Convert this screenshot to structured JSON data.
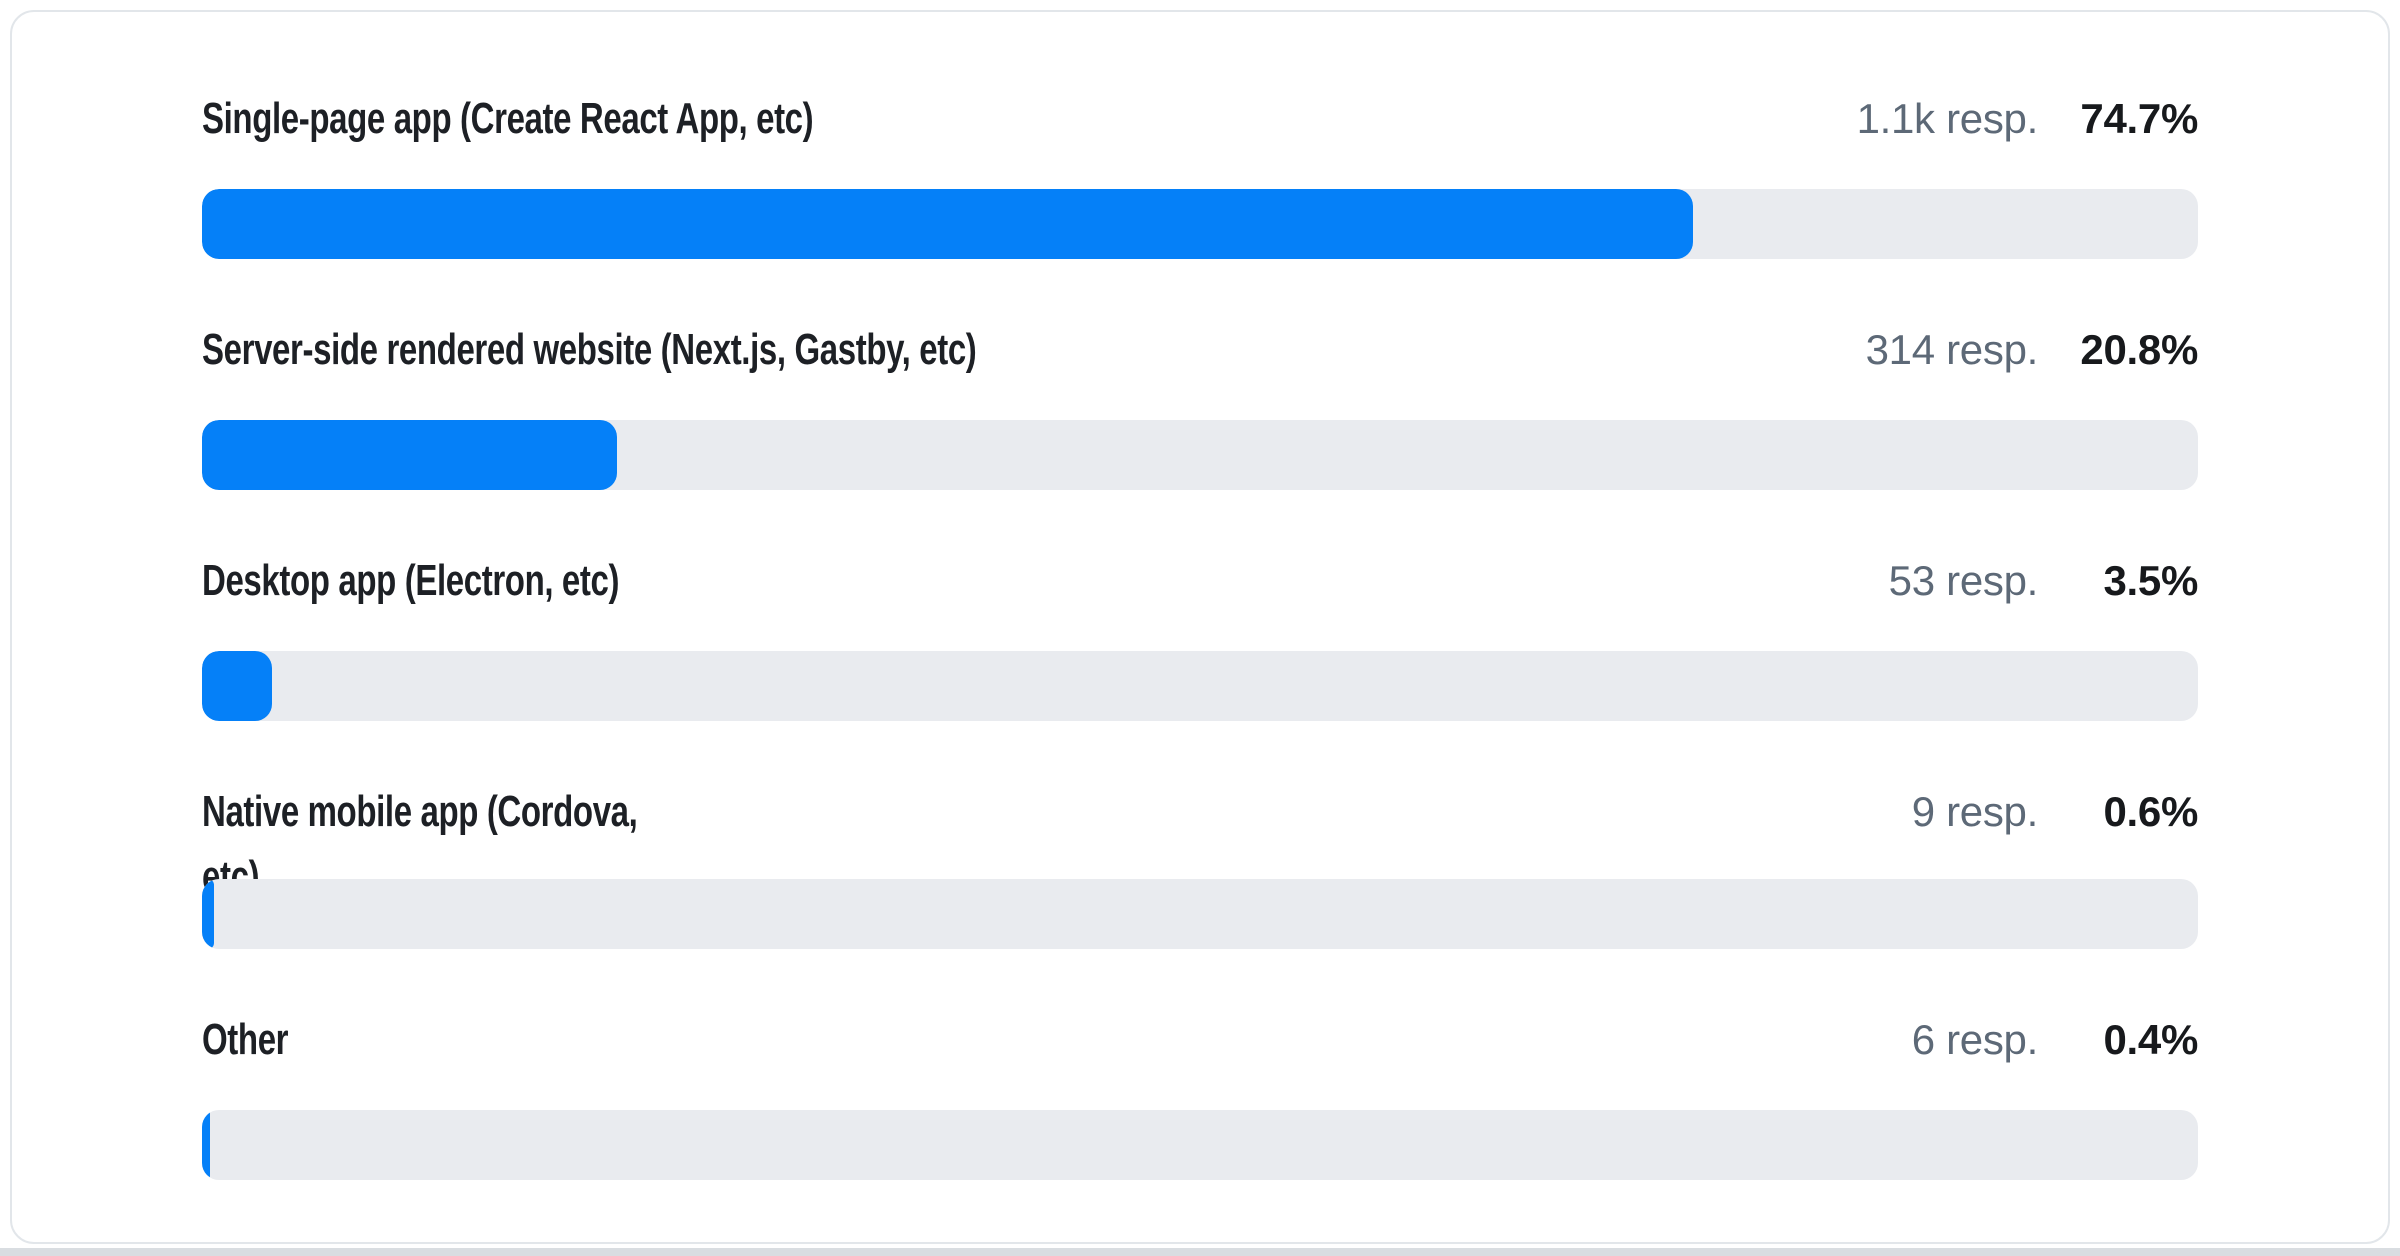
{
  "colors": {
    "bar_fill": "#0580f8",
    "bar_track": "#e9ebef",
    "label_text": "#1d2025",
    "resp_text": "#5d6977",
    "percent_text": "#17191c",
    "card_border": "#e2e6ea",
    "bottom_strip": "#d9dde1"
  },
  "chart_data": {
    "type": "bar",
    "orientation": "horizontal",
    "title": "",
    "xlabel": "",
    "ylabel": "",
    "xlim": [
      0,
      100
    ],
    "grid": false,
    "legend": false,
    "value_unit": "percent of responses",
    "categories": [
      "Single-page app (Create React App, etc)",
      "Server-side rendered website (Next.js, Gastby, etc)",
      "Desktop app (Electron, etc)",
      "Native mobile app (Cordova, etc)",
      "Other"
    ],
    "values": [
      74.7,
      20.8,
      3.5,
      0.6,
      0.4
    ],
    "response_counts": [
      "1.1k",
      "314",
      "53",
      "9",
      "6"
    ]
  },
  "rows": [
    {
      "label": "Single-page app (Create React App, etc)",
      "responses": "1.1k resp.",
      "percent": "74.7%",
      "value": 74.7
    },
    {
      "label": "Server-side rendered website (Next.js, Gastby, etc)",
      "responses": "314 resp.",
      "percent": "20.8%",
      "value": 20.8
    },
    {
      "label": "Desktop app (Electron, etc)",
      "responses": "53 resp.",
      "percent": "3.5%",
      "value": 3.5
    },
    {
      "label": "Native mobile app (Cordova, etc)",
      "responses": "9 resp.",
      "percent": "0.6%",
      "value": 0.6
    },
    {
      "label": "Other",
      "responses": "6 resp.",
      "percent": "0.4%",
      "value": 0.4
    }
  ]
}
